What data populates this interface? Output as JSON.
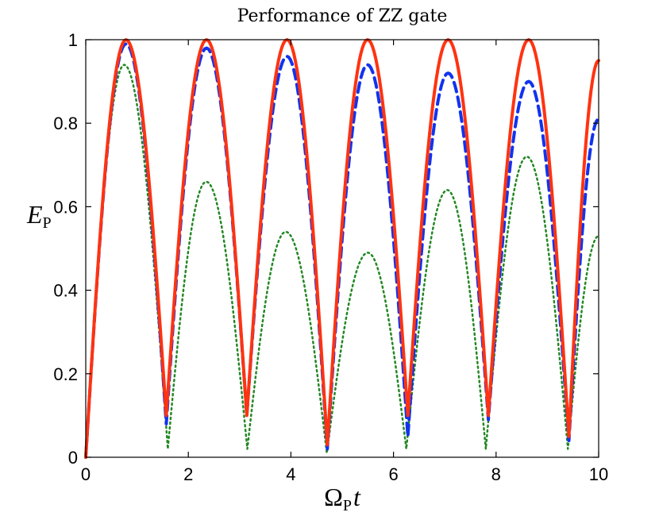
{
  "chart_data": {
    "type": "line",
    "title": "Performance of ZZ gate",
    "xlabel": {
      "main": "Ω",
      "sub": "P",
      "tail": "t"
    },
    "ylabel": {
      "main": "E",
      "sub": "P"
    },
    "xlim": [
      0,
      10
    ],
    "ylim": [
      0,
      1
    ],
    "xticks": [
      0,
      2,
      4,
      6,
      8,
      10
    ],
    "yticks": [
      0,
      0.2,
      0.4,
      0.6,
      0.8,
      1
    ],
    "grid": false,
    "series": [
      {
        "name": "solid",
        "color": "#ff3311",
        "style": "solid",
        "points": [
          [
            0,
            0
          ],
          [
            0.785,
            1
          ],
          [
            1.57,
            0.1
          ],
          [
            2.355,
            1
          ],
          [
            3.14,
            0.1
          ],
          [
            3.925,
            1
          ],
          [
            4.71,
            0.03
          ],
          [
            5.495,
            1
          ],
          [
            6.28,
            0.1
          ],
          [
            7.065,
            1
          ],
          [
            7.85,
            0.1
          ],
          [
            8.635,
            1
          ],
          [
            9.42,
            0.05
          ],
          [
            10,
            0.95
          ]
        ]
      },
      {
        "name": "dashed",
        "color": "#1133ee",
        "style": "dashed",
        "points": [
          [
            0,
            0
          ],
          [
            0.785,
            0.99
          ],
          [
            1.57,
            0.08
          ],
          [
            2.355,
            0.98
          ],
          [
            3.14,
            0.1
          ],
          [
            3.925,
            0.96
          ],
          [
            4.71,
            0.02
          ],
          [
            5.495,
            0.94
          ],
          [
            6.28,
            0.05
          ],
          [
            7.065,
            0.92
          ],
          [
            7.85,
            0.09
          ],
          [
            8.635,
            0.9
          ],
          [
            9.42,
            0.04
          ],
          [
            10,
            0.81
          ]
        ]
      },
      {
        "name": "dotted",
        "color": "#228822",
        "style": "dotted",
        "points": [
          [
            0,
            0
          ],
          [
            0.75,
            0.94
          ],
          [
            1.6,
            0.02
          ],
          [
            2.35,
            0.66
          ],
          [
            3.15,
            0.02
          ],
          [
            3.9,
            0.54
          ],
          [
            4.7,
            0.01
          ],
          [
            5.5,
            0.49
          ],
          [
            6.25,
            0.02
          ],
          [
            7.05,
            0.64
          ],
          [
            7.8,
            0.02
          ],
          [
            8.6,
            0.72
          ],
          [
            9.4,
            0.02
          ],
          [
            10,
            0.53
          ]
        ]
      }
    ]
  }
}
